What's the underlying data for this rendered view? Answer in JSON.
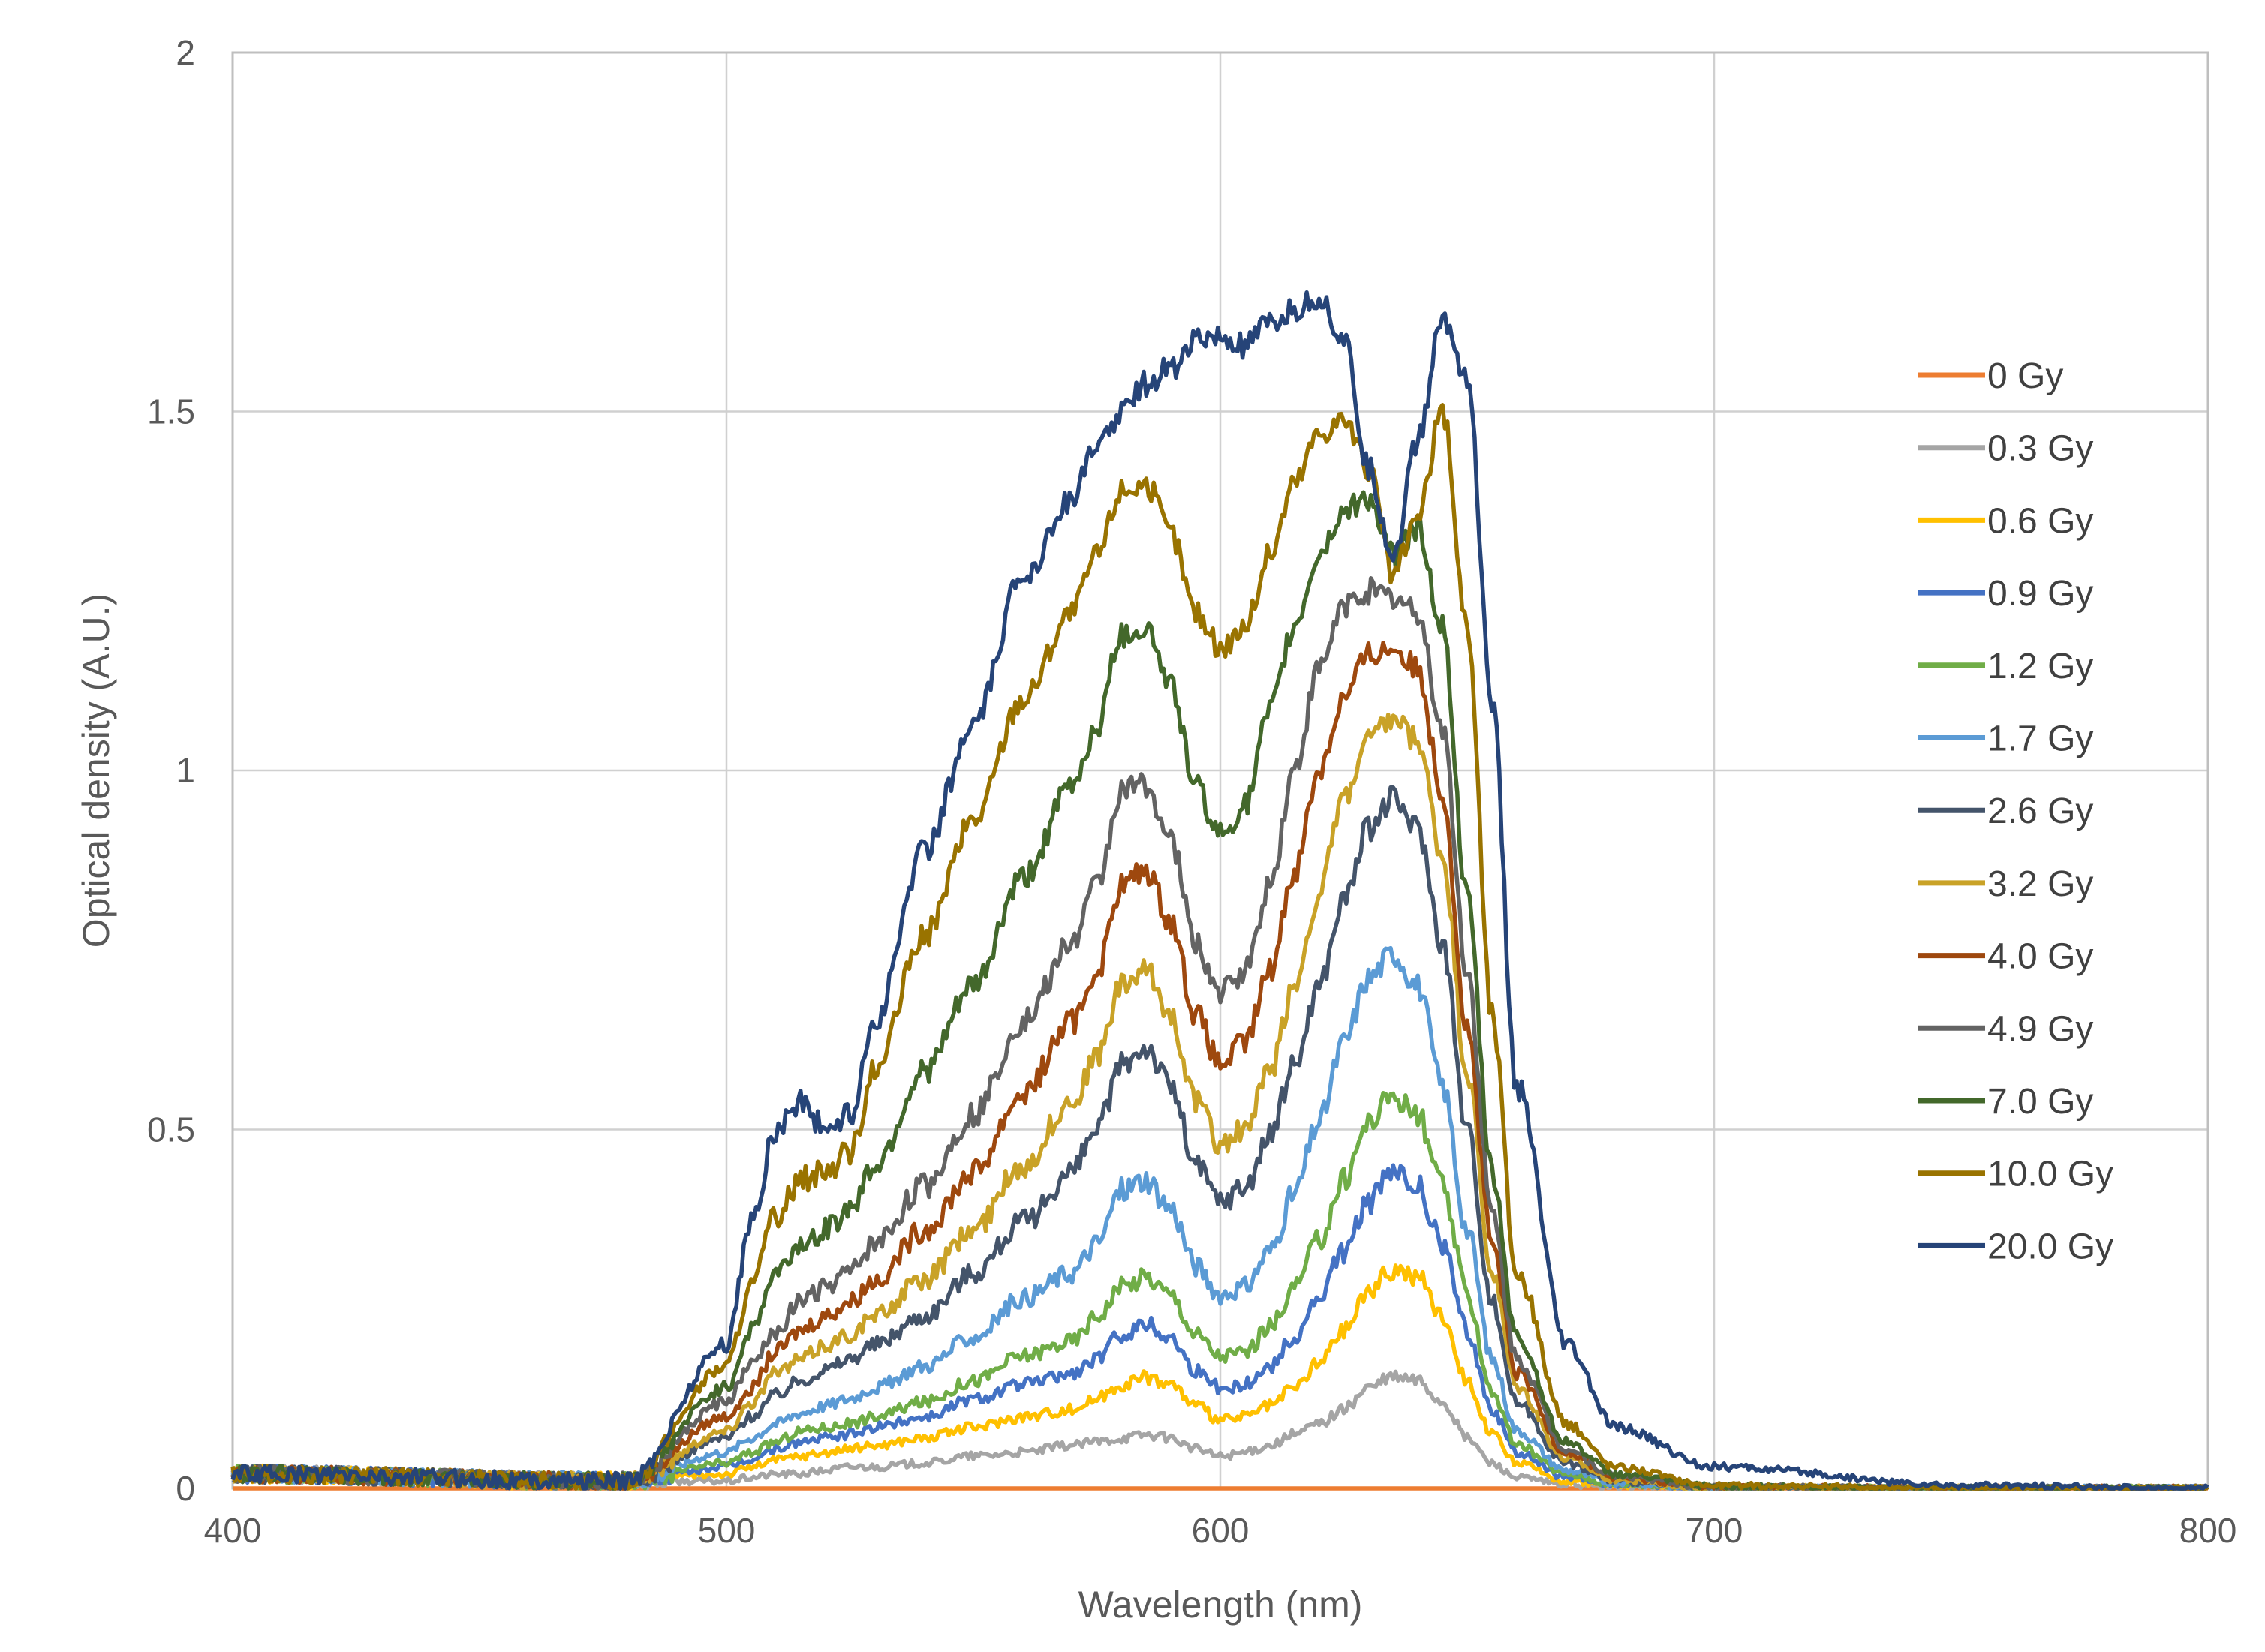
{
  "chart_data": {
    "type": "line",
    "title": "",
    "xlabel": "Wavelength (nm)",
    "ylabel": "Optical density (A.U.)",
    "xlim": [
      400,
      800
    ],
    "ylim": [
      0,
      2
    ],
    "xticks": [
      400,
      500,
      600,
      700,
      800
    ],
    "xtick_labels": [
      "400",
      "500",
      "600",
      "700",
      "800"
    ],
    "yticks": [
      0,
      0.5,
      1,
      1.5,
      2
    ],
    "ytick_labels": [
      "0",
      "0.5",
      "1",
      "1.5",
      "2"
    ],
    "grid": true,
    "legend_position": "right",
    "x": [
      400,
      480,
      500,
      505,
      510,
      515,
      520,
      525,
      530,
      540,
      550,
      560,
      570,
      575,
      580,
      585,
      590,
      595,
      600,
      605,
      610,
      615,
      620,
      625,
      630,
      635,
      640,
      645,
      650,
      655,
      660,
      670,
      680,
      700,
      750,
      800
    ],
    "series": [
      {
        "name": "0 Gy",
        "color": "#ED7D31",
        "values": [
          0,
          0,
          0,
          0,
          0,
          0,
          0,
          0,
          0,
          0,
          0,
          0,
          0,
          0,
          0,
          0,
          0,
          0,
          0,
          0,
          0,
          0,
          0,
          0,
          0,
          0,
          0,
          0,
          0,
          0,
          0,
          0,
          0,
          0,
          0,
          0
        ]
      },
      {
        "name": "0.3 Gy",
        "color": "#A5A5A5",
        "values": [
          0.02,
          0.01,
          0.01,
          0.015,
          0.02,
          0.02,
          0.025,
          0.03,
          0.03,
          0.035,
          0.045,
          0.05,
          0.06,
          0.065,
          0.07,
          0.075,
          0.07,
          0.055,
          0.045,
          0.05,
          0.06,
          0.075,
          0.09,
          0.11,
          0.14,
          0.155,
          0.15,
          0.12,
          0.07,
          0.035,
          0.015,
          0.005,
          0.002,
          0,
          0,
          0
        ]
      },
      {
        "name": "0.6 Gy",
        "color": "#FFC000",
        "values": [
          0.02,
          0.01,
          0.02,
          0.03,
          0.04,
          0.045,
          0.05,
          0.055,
          0.06,
          0.07,
          0.085,
          0.1,
          0.11,
          0.125,
          0.145,
          0.155,
          0.145,
          0.115,
          0.095,
          0.1,
          0.115,
          0.14,
          0.175,
          0.22,
          0.275,
          0.305,
          0.295,
          0.24,
          0.15,
          0.075,
          0.035,
          0.01,
          0.004,
          0,
          0,
          0
        ]
      },
      {
        "name": "0.9 Gy",
        "color": "#4472C4",
        "values": [
          0.02,
          0.01,
          0.03,
          0.04,
          0.055,
          0.065,
          0.07,
          0.075,
          0.085,
          0.1,
          0.125,
          0.145,
          0.16,
          0.18,
          0.215,
          0.23,
          0.21,
          0.165,
          0.14,
          0.145,
          0.17,
          0.21,
          0.265,
          0.33,
          0.4,
          0.44,
          0.42,
          0.34,
          0.22,
          0.11,
          0.05,
          0.015,
          0.005,
          0,
          0,
          0
        ]
      },
      {
        "name": "1.2 Gy",
        "color": "#70AD47",
        "values": [
          0.02,
          0.01,
          0.035,
          0.05,
          0.065,
          0.08,
          0.085,
          0.09,
          0.1,
          0.12,
          0.15,
          0.185,
          0.205,
          0.24,
          0.28,
          0.295,
          0.27,
          0.215,
          0.185,
          0.19,
          0.225,
          0.28,
          0.345,
          0.43,
          0.51,
          0.55,
          0.52,
          0.42,
          0.27,
          0.135,
          0.06,
          0.02,
          0.006,
          0,
          0,
          0
        ]
      },
      {
        "name": "1.7 Gy",
        "color": "#5B9BD5",
        "values": [
          0.02,
          0.01,
          0.05,
          0.07,
          0.09,
          0.105,
          0.115,
          0.125,
          0.14,
          0.17,
          0.21,
          0.265,
          0.3,
          0.34,
          0.415,
          0.43,
          0.39,
          0.31,
          0.27,
          0.28,
          0.33,
          0.41,
          0.51,
          0.62,
          0.71,
          0.745,
          0.7,
          0.56,
          0.36,
          0.18,
          0.08,
          0.025,
          0.008,
          0,
          0,
          0
        ]
      },
      {
        "name": "2.6 Gy",
        "color": "#44546A",
        "values": [
          0.02,
          0.01,
          0.07,
          0.1,
          0.13,
          0.15,
          0.165,
          0.18,
          0.2,
          0.24,
          0.3,
          0.37,
          0.44,
          0.5,
          0.59,
          0.615,
          0.56,
          0.45,
          0.4,
          0.42,
          0.49,
          0.59,
          0.7,
          0.82,
          0.92,
          0.96,
          0.92,
          0.76,
          0.5,
          0.26,
          0.12,
          0.035,
          0.01,
          0,
          0,
          0
        ]
      },
      {
        "name": "3.2 Gy",
        "color": "#C9A227",
        "values": [
          0.02,
          0.01,
          0.08,
          0.12,
          0.16,
          0.18,
          0.2,
          0.215,
          0.24,
          0.29,
          0.36,
          0.45,
          0.54,
          0.6,
          0.7,
          0.72,
          0.66,
          0.54,
          0.48,
          0.5,
          0.58,
          0.7,
          0.83,
          0.96,
          1.04,
          1.07,
          1.04,
          0.88,
          0.58,
          0.3,
          0.14,
          0.04,
          0.012,
          0.001,
          0,
          0
        ]
      },
      {
        "name": "4.0 Gy",
        "color": "#9E480E",
        "values": [
          0.02,
          0.01,
          0.1,
          0.14,
          0.19,
          0.22,
          0.24,
          0.26,
          0.29,
          0.36,
          0.44,
          0.55,
          0.65,
          0.72,
          0.84,
          0.86,
          0.79,
          0.66,
          0.59,
          0.62,
          0.72,
          0.86,
          1.0,
          1.1,
          1.16,
          1.17,
          1.14,
          0.97,
          0.64,
          0.34,
          0.16,
          0.05,
          0.015,
          0.002,
          0,
          0
        ]
      },
      {
        "name": "4.9 Gy",
        "color": "#636363",
        "values": [
          0.02,
          0.01,
          0.12,
          0.17,
          0.22,
          0.26,
          0.28,
          0.3,
          0.34,
          0.42,
          0.52,
          0.65,
          0.76,
          0.84,
          0.97,
          0.98,
          0.9,
          0.76,
          0.69,
          0.72,
          0.84,
          1.0,
          1.14,
          1.23,
          1.25,
          1.24,
          1.22,
          1.06,
          0.72,
          0.38,
          0.18,
          0.055,
          0.017,
          0.002,
          0,
          0
        ]
      },
      {
        "name": "7.0 Gy",
        "color": "#43682B",
        "values": [
          0.02,
          0.01,
          0.14,
          0.22,
          0.3,
          0.34,
          0.36,
          0.39,
          0.45,
          0.58,
          0.7,
          0.85,
          0.98,
          1.06,
          1.19,
          1.2,
          1.12,
          0.98,
          0.91,
          0.95,
          1.08,
          1.2,
          1.3,
          1.36,
          1.38,
          1.3,
          1.34,
          1.2,
          0.82,
          0.44,
          0.21,
          0.065,
          0.02,
          0.003,
          0,
          0
        ]
      },
      {
        "name": "10.0 Gy",
        "color": "#997300",
        "values": [
          0.02,
          0.01,
          0.17,
          0.28,
          0.38,
          0.43,
          0.44,
          0.47,
          0.58,
          0.77,
          0.93,
          1.1,
          1.22,
          1.3,
          1.39,
          1.4,
          1.33,
          1.22,
          1.17,
          1.2,
          1.3,
          1.4,
          1.47,
          1.49,
          1.42,
          1.27,
          1.35,
          1.5,
          1.2,
          0.66,
          0.3,
          0.09,
          0.03,
          0.004,
          0,
          0
        ]
      },
      {
        "name": "20.0 Gy",
        "color": "#264478",
        "values": [
          0.02,
          0.01,
          0.2,
          0.37,
          0.5,
          0.54,
          0.5,
          0.52,
          0.65,
          0.89,
          1.06,
          1.27,
          1.38,
          1.45,
          1.5,
          1.54,
          1.56,
          1.6,
          1.6,
          1.59,
          1.62,
          1.64,
          1.66,
          1.6,
          1.42,
          1.3,
          1.46,
          1.63,
          1.55,
          1.1,
          0.56,
          0.2,
          0.085,
          0.03,
          0.004,
          0
        ]
      }
    ]
  }
}
